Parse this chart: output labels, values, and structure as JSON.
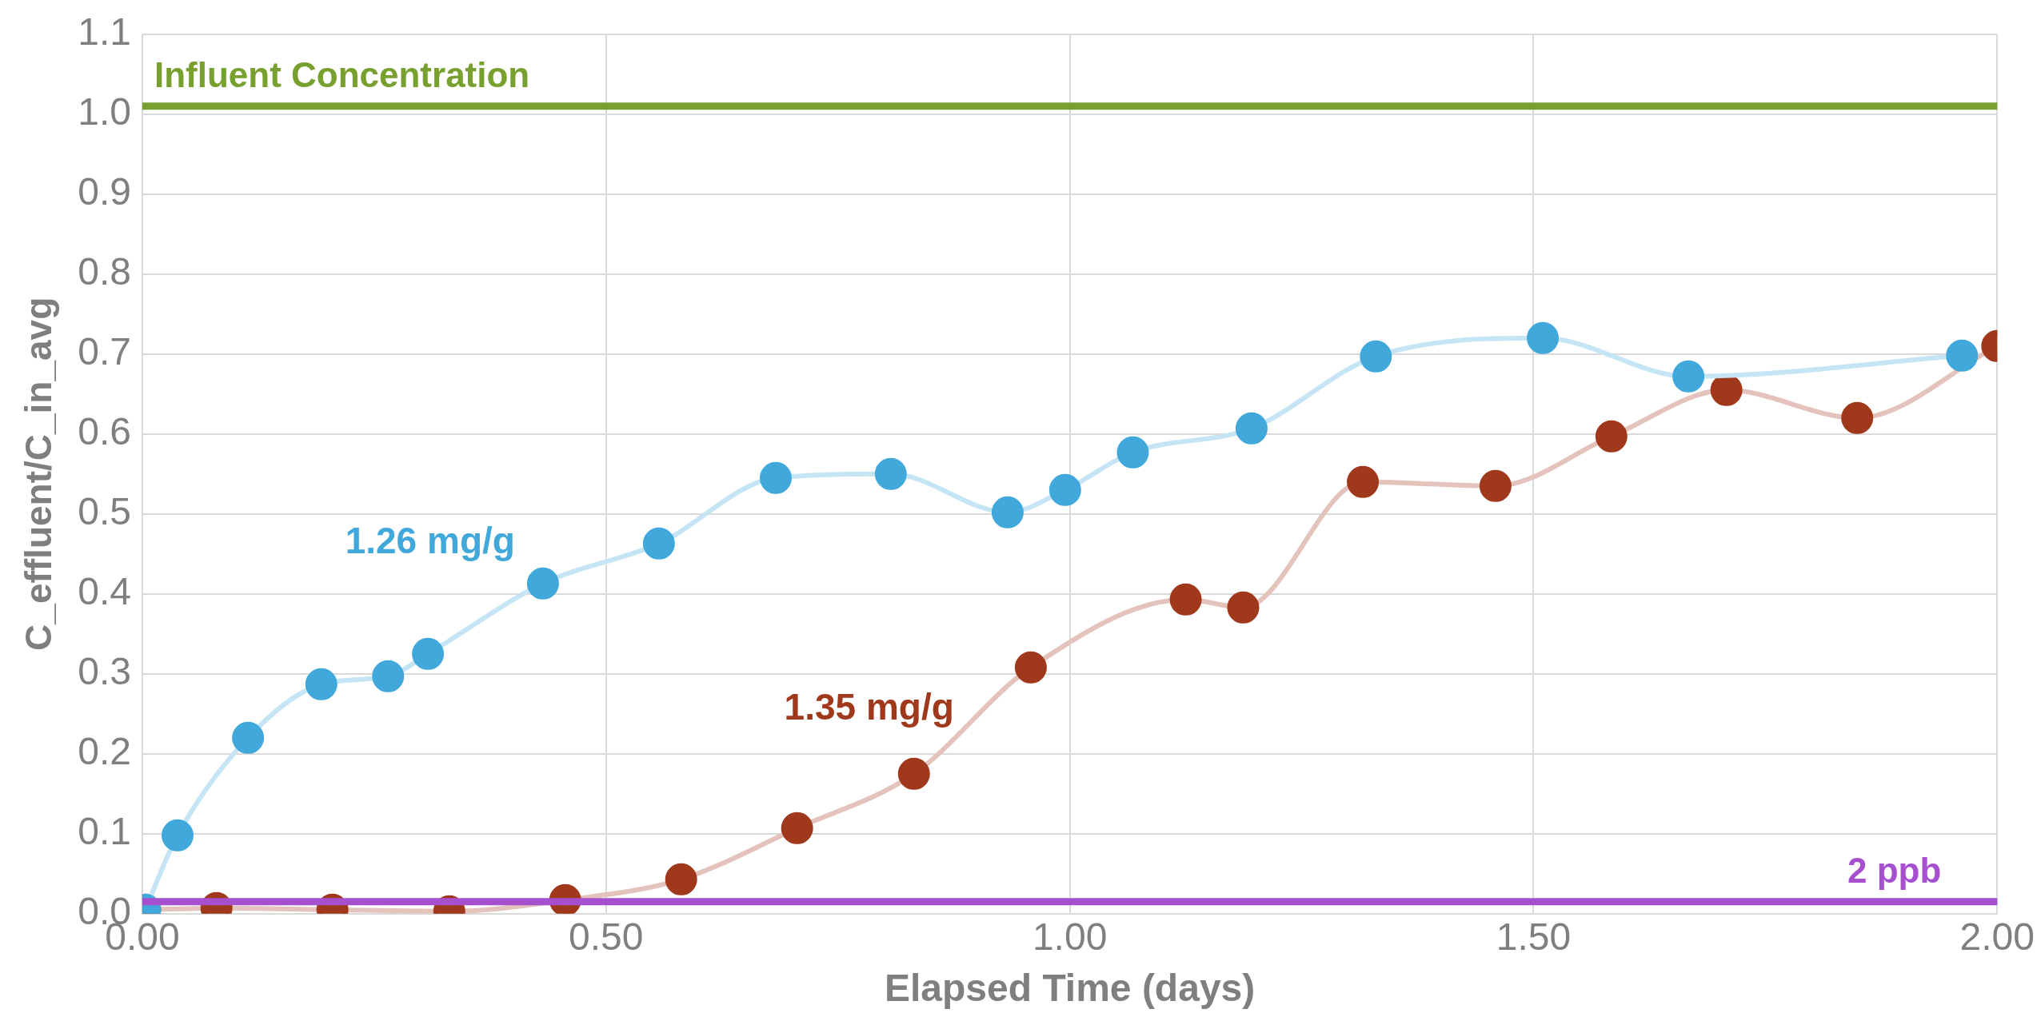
{
  "chart_data": {
    "type": "line",
    "xlabel": "Elapsed Time (days)",
    "ylabel": "C_effluent/C_in_avg",
    "xlim": [
      0,
      2
    ],
    "xticks": [
      {
        "value": 0,
        "label": "0.00"
      },
      {
        "value": 0.5,
        "label": "0.50"
      },
      {
        "value": 1,
        "label": "1.00"
      },
      {
        "value": 1.5,
        "label": "1.50"
      },
      {
        "value": 2,
        "label": "2.00"
      }
    ],
    "ylim": [
      0,
      1.1
    ],
    "yticks": [
      {
        "value": 0,
        "label": "0.0"
      },
      {
        "value": 0.1,
        "label": "0.1"
      },
      {
        "value": 0.2,
        "label": "0.2"
      },
      {
        "value": 0.3,
        "label": "0.3"
      },
      {
        "value": 0.4,
        "label": "0.4"
      },
      {
        "value": 0.5,
        "label": "0.5"
      },
      {
        "value": 0.6,
        "label": "0.6"
      },
      {
        "value": 0.7,
        "label": "0.7"
      },
      {
        "value": 0.8,
        "label": "0.8"
      },
      {
        "value": 0.9,
        "label": "0.9"
      },
      {
        "value": 1,
        "label": "1.0"
      },
      {
        "value": 1.1,
        "label": "1.1"
      }
    ],
    "grid": true,
    "legend": false,
    "marker": "circle",
    "line_style": "solid",
    "series": [
      {
        "name": "1.26 mg/g",
        "color": "#41a8db",
        "x": [
          0.003,
          0.038,
          0.114,
          0.193,
          0.265,
          0.308,
          0.432,
          0.557,
          0.683,
          0.807,
          0.933,
          0.995,
          1.068,
          1.196,
          1.33,
          1.51,
          1.667,
          1.962
        ],
        "values": [
          0.005,
          0.098,
          0.22,
          0.287,
          0.297,
          0.325,
          0.413,
          0.463,
          0.545,
          0.55,
          0.502,
          0.53,
          0.577,
          0.607,
          0.697,
          0.72,
          0.672,
          0.698
        ]
      },
      {
        "name": "1.35 mg/g",
        "color": "#a0381c",
        "x": [
          0.003,
          0.08,
          0.205,
          0.331,
          0.456,
          0.581,
          0.706,
          0.832,
          0.958,
          1.125,
          1.187,
          1.316,
          1.459,
          1.584,
          1.708,
          1.849,
          2.0
        ],
        "values": [
          0.005,
          0.007,
          0.005,
          0.003,
          0.017,
          0.043,
          0.107,
          0.175,
          0.308,
          0.393,
          0.383,
          0.54,
          0.535,
          0.597,
          0.655,
          0.62,
          0.71
        ]
      }
    ],
    "ref_lines": [
      {
        "axis": "y",
        "value": 1.01,
        "label": "Influent Concentration",
        "color": "#77a02e"
      },
      {
        "axis": "y",
        "value": 0.015,
        "label": "2 ppb",
        "color": "#a64fcf"
      }
    ]
  }
}
